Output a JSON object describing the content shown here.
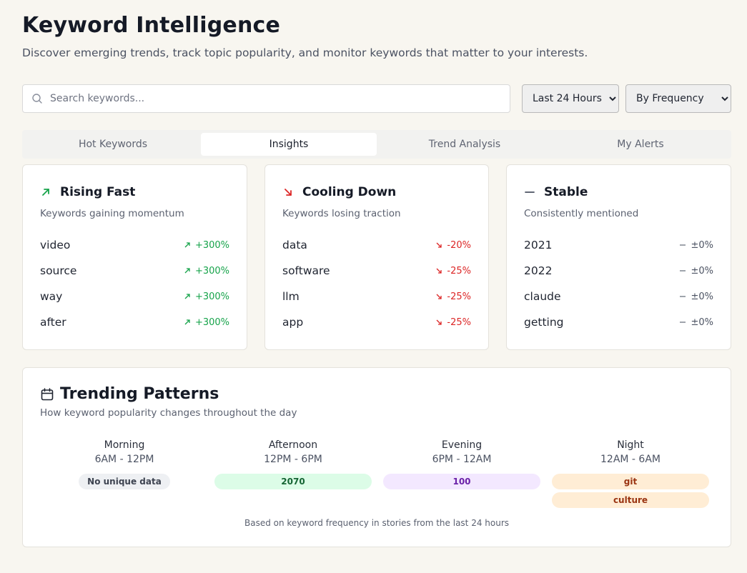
{
  "header": {
    "title": "Keyword Intelligence",
    "subtitle": "Discover emerging trends, track topic popularity, and monitor keywords that matter to your interests."
  },
  "search": {
    "placeholder": "Search keywords...",
    "value": ""
  },
  "filters": {
    "time_range": {
      "selected": "Last 24 Hours"
    },
    "sort": {
      "selected": "By Frequency"
    }
  },
  "tabs": [
    {
      "label": "Hot Keywords"
    },
    {
      "label": "Insights",
      "active": true
    },
    {
      "label": "Trend Analysis"
    },
    {
      "label": "My Alerts"
    }
  ],
  "rising": {
    "title": "Rising Fast",
    "subtitle": "Keywords gaining momentum",
    "color": "#16a34a",
    "icon": "arrow-up-right-icon",
    "items": [
      {
        "keyword": "video",
        "change": "+300%"
      },
      {
        "keyword": "source",
        "change": "+300%"
      },
      {
        "keyword": "way",
        "change": "+300%"
      },
      {
        "keyword": "after",
        "change": "+300%"
      }
    ]
  },
  "cooling": {
    "title": "Cooling Down",
    "subtitle": "Keywords losing traction",
    "color": "#dc2626",
    "icon": "arrow-down-right-icon",
    "items": [
      {
        "keyword": "data",
        "change": "-20%"
      },
      {
        "keyword": "software",
        "change": "-25%"
      },
      {
        "keyword": "llm",
        "change": "-25%"
      },
      {
        "keyword": "app",
        "change": "-25%"
      }
    ]
  },
  "stable": {
    "title": "Stable",
    "subtitle": "Consistently mentioned",
    "icon": "minus-icon",
    "items": [
      {
        "keyword": "2021",
        "change": "±0%"
      },
      {
        "keyword": "2022",
        "change": "±0%"
      },
      {
        "keyword": "claude",
        "change": "±0%"
      },
      {
        "keyword": "getting",
        "change": "±0%"
      }
    ]
  },
  "patterns": {
    "title": "Trending Patterns",
    "subtitle": "How keyword popularity changes throughout the day",
    "icon": "calendar-icon",
    "periods": [
      {
        "name": "Morning",
        "range": "6AM - 12PM",
        "badges": [
          "No unique data"
        ]
      },
      {
        "name": "Afternoon",
        "range": "12PM - 6PM",
        "badges": [
          "2070"
        ]
      },
      {
        "name": "Evening",
        "range": "6PM - 12AM",
        "badges": [
          "100"
        ]
      },
      {
        "name": "Night",
        "range": "12AM - 6AM",
        "badges": [
          "git",
          "culture"
        ]
      }
    ],
    "footnote": "Based on keyword frequency in stories from the last 24 hours"
  }
}
